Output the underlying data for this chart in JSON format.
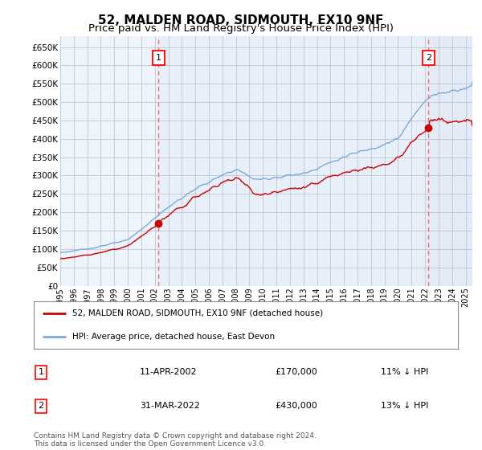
{
  "title": "52, MALDEN ROAD, SIDMOUTH, EX10 9NF",
  "subtitle": "Price paid vs. HM Land Registry's House Price Index (HPI)",
  "ylabel_ticks": [
    0,
    50000,
    100000,
    150000,
    200000,
    250000,
    300000,
    350000,
    400000,
    450000,
    500000,
    550000,
    600000,
    650000
  ],
  "ylim": [
    0,
    680000
  ],
  "xlim_start": 1995.0,
  "xlim_end": 2025.5,
  "sale1_x": 2002.28,
  "sale1_y": 170000,
  "sale2_x": 2022.25,
  "sale2_y": 430000,
  "hpi_color": "#7aaadd",
  "price_color": "#cc0000",
  "vline_color": "#ff6666",
  "shading_color": "#dde8f5",
  "legend_label1": "52, MALDEN ROAD, SIDMOUTH, EX10 9NF (detached house)",
  "legend_label2": "HPI: Average price, detached house, East Devon",
  "table_row1": [
    "1",
    "11-APR-2002",
    "£170,000",
    "11% ↓ HPI"
  ],
  "table_row2": [
    "2",
    "31-MAR-2022",
    "£430,000",
    "13% ↓ HPI"
  ],
  "footnote": "Contains HM Land Registry data © Crown copyright and database right 2024.\nThis data is licensed under the Open Government Licence v3.0.",
  "bg_color": "#ffffff",
  "plot_bg": "#eef4fb",
  "grid_color": "#bbbbcc",
  "title_fontsize": 11,
  "subtitle_fontsize": 9.5
}
